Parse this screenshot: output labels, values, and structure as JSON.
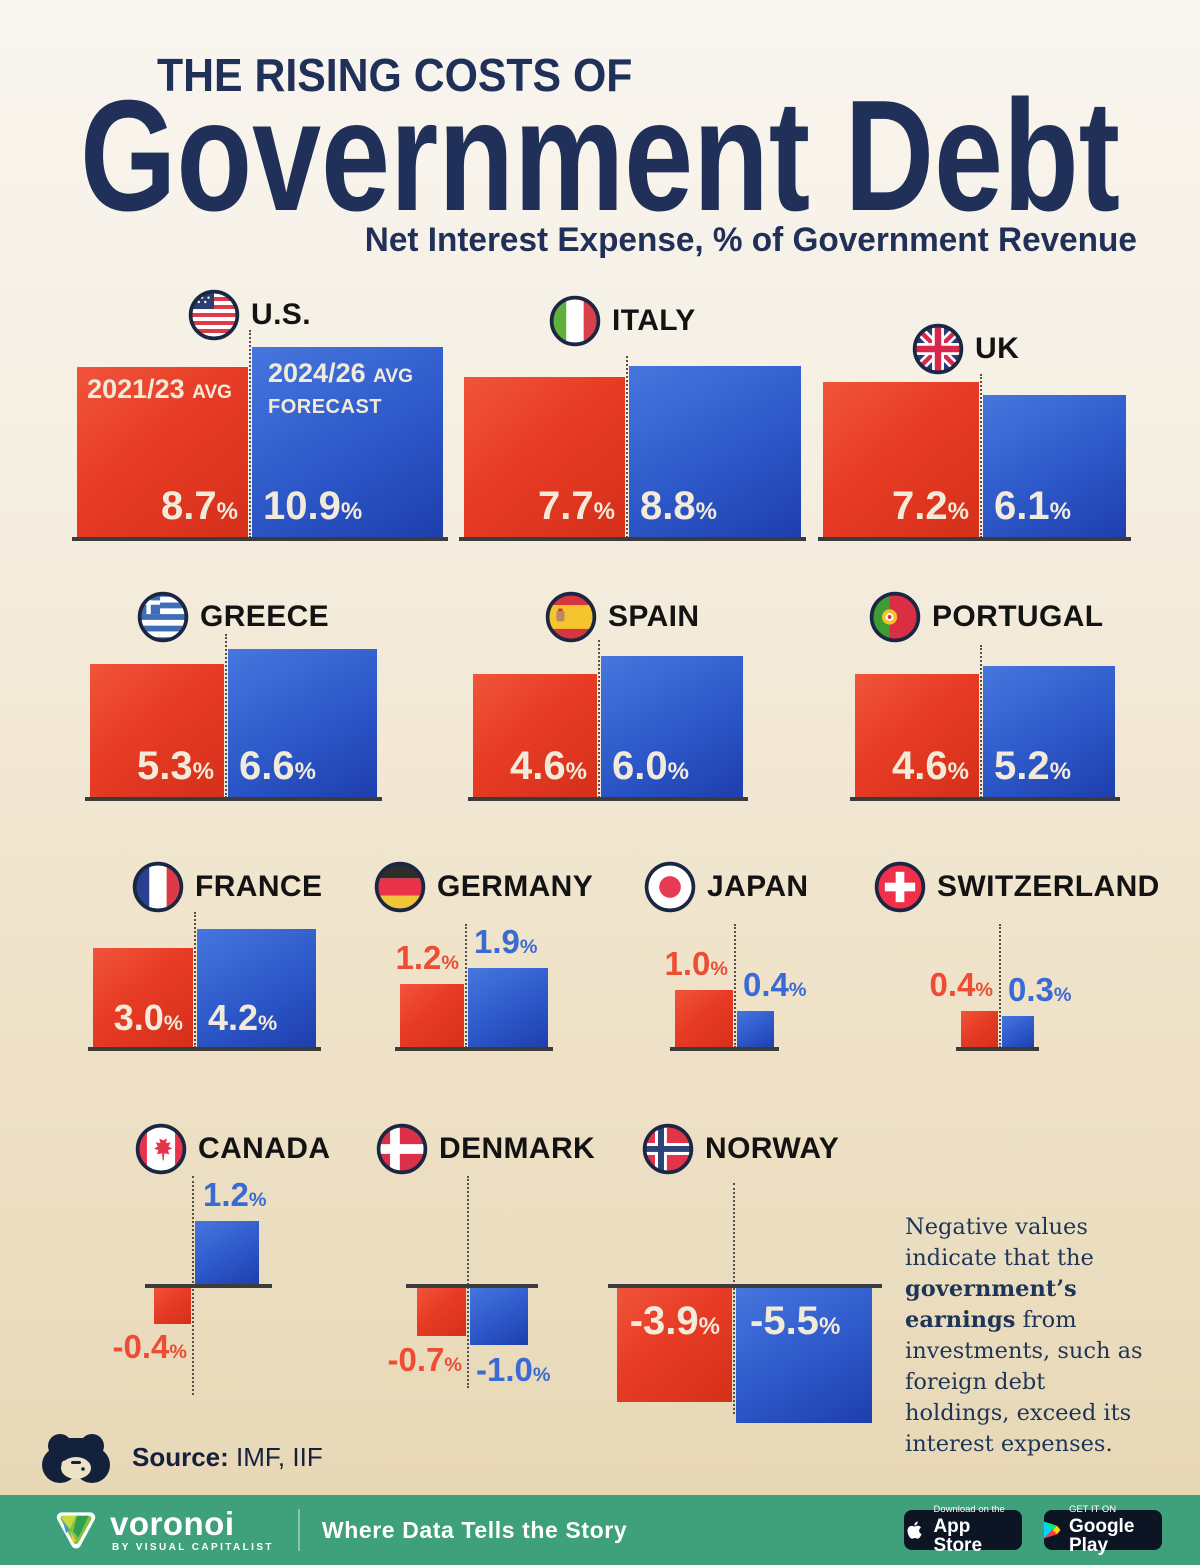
{
  "header": {
    "kicker": "THE RISING COSTS OF",
    "title": "Government Debt",
    "subtitle": "Net Interest Expense, % of Government Revenue"
  },
  "legend": {
    "red_period": "2021/23",
    "red_tag": "AVG",
    "blue_period": "2024/26",
    "blue_tag": "AVG",
    "blue_line2": "FORECAST"
  },
  "chart_data": {
    "type": "bar",
    "title": "The Rising Costs of Government Debt",
    "subtitle": "Net Interest Expense, % of Government Revenue",
    "series": [
      "2021/23 AVG",
      "2024/26 AVG FORECAST"
    ],
    "unit": "%",
    "encoding": "square bars, side proportional to sqrt(value); negative values drawn below axis",
    "countries": [
      {
        "name": "U.S.",
        "flag": "us",
        "values": [
          8.7,
          10.9
        ]
      },
      {
        "name": "ITALY",
        "flag": "it",
        "values": [
          7.7,
          8.8
        ]
      },
      {
        "name": "UK",
        "flag": "uk",
        "values": [
          7.2,
          6.1
        ]
      },
      {
        "name": "GREECE",
        "flag": "gr",
        "values": [
          5.3,
          6.6
        ]
      },
      {
        "name": "SPAIN",
        "flag": "es",
        "values": [
          4.6,
          6.0
        ]
      },
      {
        "name": "PORTUGAL",
        "flag": "pt",
        "values": [
          4.6,
          5.2
        ]
      },
      {
        "name": "FRANCE",
        "flag": "fr",
        "values": [
          3.0,
          4.2
        ]
      },
      {
        "name": "GERMANY",
        "flag": "de",
        "values": [
          1.2,
          1.9
        ]
      },
      {
        "name": "JAPAN",
        "flag": "jp",
        "values": [
          1.0,
          0.4
        ]
      },
      {
        "name": "SWITZERLAND",
        "flag": "ch",
        "values": [
          0.4,
          0.3
        ]
      },
      {
        "name": "CANADA",
        "flag": "ca",
        "values": [
          -0.4,
          1.2
        ]
      },
      {
        "name": "DENMARK",
        "flag": "dk",
        "values": [
          -0.7,
          -1.0
        ]
      },
      {
        "name": "NORWAY",
        "flag": "no",
        "values": [
          -3.9,
          -5.5
        ]
      }
    ]
  },
  "note": {
    "before": "Negative values indicate that the ",
    "bold": "government’s earnings",
    "after": " from investments, such as foreign debt holdings, exceed its interest expenses."
  },
  "source": {
    "label": "Source:",
    "text": "IMF, IIF"
  },
  "footer": {
    "brand": "voronoi",
    "byline": "BY VISUAL CAPITALIST",
    "tagline": "Where Data Tells the Story",
    "appstore": {
      "line1": "Download on the",
      "line2": "App Store"
    },
    "googleplay": {
      "line1": "GET IT ON",
      "line2": "Google Play"
    }
  },
  "colors": {
    "navy_title": "#203058",
    "bar_red": "#E73B25",
    "bar_blue": "#2D58C9",
    "label_cream": "#F3EBD9",
    "background_top": "#F9F6F0",
    "background_bottom": "#E6D6B4",
    "footer_green": "#3FA07C"
  }
}
